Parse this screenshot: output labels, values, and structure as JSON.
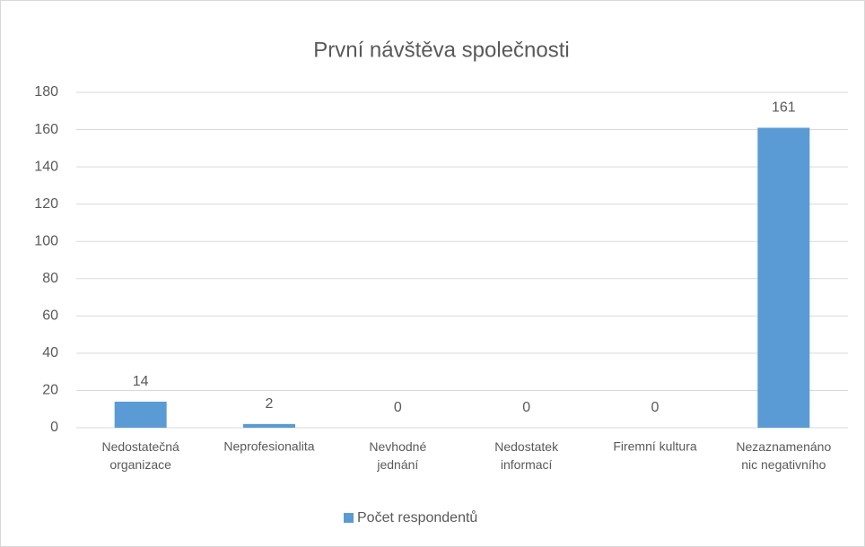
{
  "chart_data": {
    "type": "bar",
    "title": "První návštěva společnosti",
    "categories": [
      "Nedostatečná\norganizace",
      "Neprofesionalita",
      "Nevhodné\njednání",
      "Nedostatek\ninformací",
      "Firemní kultura",
      "Nezaznamenáno\nnic negativního"
    ],
    "series": [
      {
        "name": "Počet respondentů",
        "color": "#5b9bd5",
        "values": [
          14,
          2,
          0,
          0,
          0,
          161
        ]
      }
    ],
    "ylim": [
      0,
      180
    ],
    "yticks": [
      0,
      20,
      40,
      60,
      80,
      100,
      120,
      140,
      160,
      180
    ],
    "grid": true,
    "legend": "bottom"
  }
}
